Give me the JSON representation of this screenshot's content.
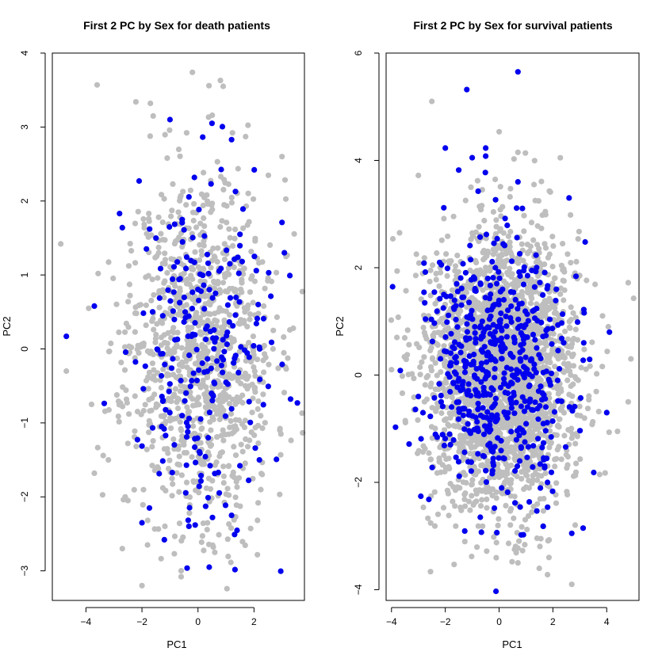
{
  "colors": {
    "female": "#0000ee",
    "male": "#bebebe"
  },
  "chart_data": [
    {
      "type": "scatter",
      "title": "First 2 PC by Sex for death patients",
      "xlabel": "PC1",
      "ylabel": "PC2",
      "xlim": [
        -5.2,
        3.8
      ],
      "ylim": [
        -3.4,
        4.0
      ],
      "xticks": [
        -4,
        -2,
        0,
        2
      ],
      "yticks": [
        -3,
        -2,
        -1,
        0,
        1,
        2,
        3,
        4
      ],
      "grid": false,
      "legend": "none",
      "series": [
        {
          "color": "#bebebe",
          "cloud": {
            "count": 1100,
            "x_mean": 0.1,
            "x_sd": 1.3,
            "y_mean": 0.0,
            "y_sd": 1.15,
            "seed": 11
          },
          "points": [
            [
              -4.9,
              1.42
            ],
            [
              -3.6,
              3.57
            ],
            [
              -3.8,
              -0.75
            ],
            [
              -3.7,
              -1.68
            ],
            [
              -4.7,
              -0.3
            ],
            [
              -3.9,
              0.55
            ],
            [
              -0.2,
              3.74
            ],
            [
              0.8,
              3.63
            ],
            [
              0.9,
              3.55
            ],
            [
              -1.7,
              3.32
            ],
            [
              -1.6,
              3.15
            ],
            [
              1.7,
              2.87
            ],
            [
              3.0,
              2.6
            ],
            [
              3.4,
              0.28
            ],
            [
              3.0,
              -0.22
            ],
            [
              -2.6,
              -2.0
            ],
            [
              -2.5,
              -2.05
            ],
            [
              -2.7,
              -2.7
            ],
            [
              -1.8,
              -2.65
            ],
            [
              -2.0,
              -3.2
            ],
            [
              -0.6,
              -3.0
            ],
            [
              -0.6,
              -3.08
            ],
            [
              0.6,
              -2.75
            ],
            [
              -3.2,
              -1.5
            ]
          ]
        },
        {
          "color": "#0000ee",
          "cloud": {
            "count": 230,
            "x_mean": 0.0,
            "x_sd": 1.25,
            "y_mean": 0.0,
            "y_sd": 1.15,
            "seed": 29
          },
          "points": [
            [
              -4.7,
              0.17
            ],
            [
              -3.7,
              0.58
            ],
            [
              -2.8,
              1.83
            ],
            [
              -2.7,
              1.64
            ],
            [
              -1.0,
              3.1
            ],
            [
              0.5,
              3.05
            ],
            [
              1.2,
              2.83
            ],
            [
              3.0,
              1.71
            ],
            [
              -2.1,
              2.27
            ],
            [
              -1.2,
              -2.58
            ],
            [
              0.4,
              -2.95
            ],
            [
              -2.0,
              -2.35
            ],
            [
              -0.1,
              -2.38
            ],
            [
              1.2,
              -2.25
            ],
            [
              2.2,
              0.0
            ],
            [
              1.5,
              1.55
            ]
          ]
        }
      ]
    },
    {
      "type": "scatter",
      "title": "First 2 PC by Sex for survival patients",
      "xlabel": "PC1",
      "ylabel": "PC2",
      "xlim": [
        -4.2,
        5.2
      ],
      "ylim": [
        -4.2,
        6.0
      ],
      "xticks": [
        -4,
        -2,
        0,
        2,
        4
      ],
      "yticks": [
        -4,
        -2,
        0,
        2,
        4,
        6
      ],
      "grid": false,
      "legend": "none",
      "series": [
        {
          "color": "#bebebe",
          "cloud": {
            "count": 2600,
            "x_mean": 0.1,
            "x_sd": 1.35,
            "y_mean": 0.1,
            "y_sd": 1.25,
            "seed": 41
          },
          "points": [
            [
              -2.5,
              5.1
            ],
            [
              -3.0,
              3.72
            ],
            [
              -3.7,
              2.65
            ],
            [
              -4.0,
              0.1
            ],
            [
              4.8,
              1.72
            ],
            [
              5.0,
              1.43
            ],
            [
              4.8,
              -0.5
            ],
            [
              4.4,
              -1.05
            ],
            [
              1.8,
              -3.72
            ],
            [
              2.7,
              -3.9
            ],
            [
              0.7,
              -3.5
            ],
            [
              0.7,
              4.15
            ],
            [
              -0.8,
              3.62
            ],
            [
              1.3,
              3.55
            ],
            [
              -3.6,
              -0.02
            ],
            [
              -3.8,
              0.7
            ],
            [
              4.9,
              0.3
            ]
          ]
        },
        {
          "color": "#0000ee",
          "cloud": {
            "count": 560,
            "x_mean": 0.0,
            "x_sd": 1.3,
            "y_mean": 0.1,
            "y_sd": 1.2,
            "seed": 73
          },
          "points": [
            [
              0.7,
              5.65
            ],
            [
              -1.2,
              5.32
            ],
            [
              -1.0,
              4.05
            ],
            [
              -0.5,
              4.23
            ],
            [
              -0.5,
              4.08
            ],
            [
              -2.0,
              4.23
            ],
            [
              -1.5,
              3.82
            ],
            [
              -3.0,
              -0.4
            ],
            [
              3.2,
              2.48
            ],
            [
              4.1,
              0.8
            ],
            [
              4.0,
              -0.7
            ],
            [
              2.7,
              -2.95
            ],
            [
              -0.7,
              -2.65
            ],
            [
              1.8,
              -2.0
            ],
            [
              2.6,
              3.3
            ],
            [
              0.7,
              3.6
            ]
          ]
        }
      ]
    }
  ]
}
